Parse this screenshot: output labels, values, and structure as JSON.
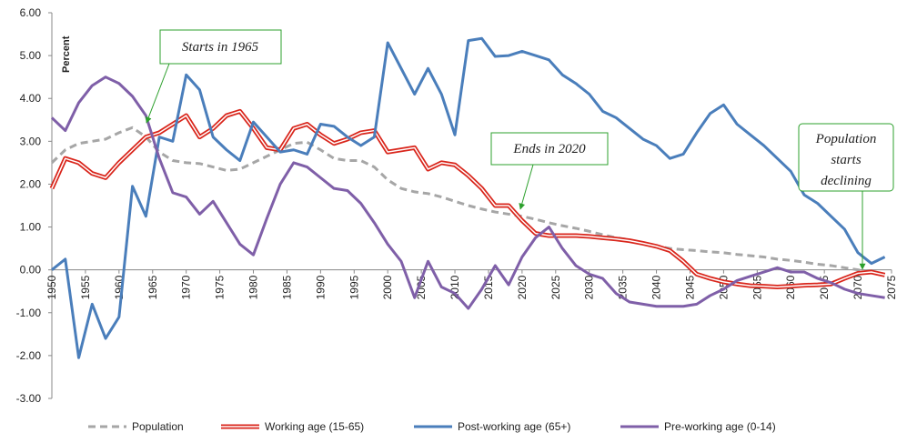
{
  "chart_data": {
    "type": "line",
    "ylabel": "Percent",
    "xlim": [
      1950,
      2075
    ],
    "xticks": [
      1950,
      1955,
      1960,
      1965,
      1970,
      1975,
      1980,
      1985,
      1990,
      1995,
      2000,
      2005,
      2010,
      2015,
      2020,
      2025,
      2030,
      2035,
      2040,
      2045,
      2050,
      2055,
      2060,
      2065,
      2070,
      2075
    ],
    "ylim": [
      -3,
      6
    ],
    "yticks": [
      {
        "value": -3,
        "label": "-3.00"
      },
      {
        "value": -2,
        "label": "-2.00"
      },
      {
        "value": -1,
        "label": "-1.00"
      },
      {
        "value": 0,
        "label": "0.00"
      },
      {
        "value": 1,
        "label": "1.00"
      },
      {
        "value": 2,
        "label": "2.00"
      },
      {
        "value": 3,
        "label": "3.00"
      },
      {
        "value": 4,
        "label": "4.00"
      },
      {
        "value": 5,
        "label": "5.00"
      },
      {
        "value": 6,
        "label": "6.00"
      }
    ],
    "grid": false,
    "legend": "bottom",
    "x": [
      1950,
      1952,
      1954,
      1956,
      1958,
      1960,
      1962,
      1964,
      1966,
      1968,
      1970,
      1972,
      1974,
      1976,
      1978,
      1980,
      1982,
      1984,
      1986,
      1988,
      1990,
      1992,
      1994,
      1996,
      1998,
      2000,
      2002,
      2004,
      2006,
      2008,
      2010,
      2012,
      2014,
      2016,
      2018,
      2020,
      2022,
      2024,
      2026,
      2028,
      2030,
      2032,
      2034,
      2036,
      2038,
      2040,
      2042,
      2044,
      2046,
      2048,
      2050,
      2052,
      2054,
      2056,
      2058,
      2060,
      2062,
      2064,
      2066,
      2068,
      2070,
      2072,
      2074
    ],
    "series": [
      {
        "name": "Population",
        "color": "#a6a6a6",
        "dashed": true,
        "values": [
          2.5,
          2.8,
          2.95,
          3.0,
          3.05,
          3.2,
          3.32,
          3.1,
          2.75,
          2.55,
          2.5,
          2.48,
          2.4,
          2.32,
          2.35,
          2.5,
          2.65,
          2.8,
          2.95,
          2.98,
          2.8,
          2.6,
          2.55,
          2.55,
          2.4,
          2.1,
          1.9,
          1.82,
          1.78,
          1.7,
          1.6,
          1.5,
          1.42,
          1.35,
          1.3,
          1.25,
          1.18,
          1.1,
          1.03,
          0.97,
          0.9,
          0.82,
          0.75,
          0.7,
          0.62,
          0.56,
          0.5,
          0.47,
          0.45,
          0.42,
          0.4,
          0.36,
          0.33,
          0.3,
          0.25,
          0.22,
          0.18,
          0.13,
          0.1,
          0.05,
          0.0,
          -0.05,
          -0.1
        ]
      },
      {
        "name": "Working age (15-65)",
        "color": "#d9261c",
        "double": true,
        "values": [
          1.9,
          2.6,
          2.5,
          2.25,
          2.15,
          2.5,
          2.8,
          3.1,
          3.2,
          3.4,
          3.6,
          3.1,
          3.3,
          3.6,
          3.7,
          3.3,
          2.85,
          2.8,
          3.3,
          3.4,
          3.15,
          2.95,
          3.05,
          3.2,
          3.25,
          2.75,
          2.8,
          2.85,
          2.35,
          2.5,
          2.45,
          2.2,
          1.9,
          1.5,
          1.5,
          1.15,
          0.85,
          0.8,
          0.8,
          0.8,
          0.78,
          0.75,
          0.72,
          0.68,
          0.62,
          0.55,
          0.45,
          0.2,
          -0.1,
          -0.2,
          -0.28,
          -0.33,
          -0.37,
          -0.38,
          -0.4,
          -0.38,
          -0.36,
          -0.35,
          -0.33,
          -0.2,
          -0.08,
          -0.05,
          -0.12
        ]
      },
      {
        "name": "Post-working age (65+)",
        "color": "#4a7ebb",
        "values": [
          0.0,
          0.25,
          -2.05,
          -0.8,
          -1.6,
          -1.1,
          1.95,
          1.25,
          3.1,
          3.0,
          4.55,
          4.2,
          3.1,
          2.8,
          2.55,
          3.45,
          3.1,
          2.75,
          2.8,
          2.7,
          3.4,
          3.35,
          3.1,
          2.9,
          3.1,
          5.3,
          4.7,
          4.1,
          4.7,
          4.1,
          3.15,
          5.35,
          5.4,
          4.98,
          5.0,
          5.1,
          5.0,
          4.9,
          4.55,
          4.35,
          4.1,
          3.7,
          3.55,
          3.3,
          3.05,
          2.9,
          2.6,
          2.7,
          3.2,
          3.65,
          3.85,
          3.4,
          3.15,
          2.9,
          2.6,
          2.3,
          1.75,
          1.55,
          1.25,
          0.95,
          0.4,
          0.15,
          0.3
        ]
      },
      {
        "name": "Pre-working age (0-14)",
        "color": "#7f5fa8",
        "values": [
          3.55,
          3.25,
          3.9,
          4.3,
          4.5,
          4.35,
          4.05,
          3.6,
          2.6,
          1.8,
          1.7,
          1.3,
          1.6,
          1.1,
          0.6,
          0.35,
          1.2,
          2.0,
          2.5,
          2.4,
          2.15,
          1.9,
          1.85,
          1.55,
          1.1,
          0.6,
          0.2,
          -0.65,
          0.2,
          -0.4,
          -0.55,
          -0.9,
          -0.45,
          0.1,
          -0.35,
          0.3,
          0.75,
          1.0,
          0.5,
          0.1,
          -0.1,
          -0.2,
          -0.55,
          -0.75,
          -0.8,
          -0.85,
          -0.85,
          -0.85,
          -0.8,
          -0.6,
          -0.45,
          -0.25,
          -0.15,
          -0.05,
          0.05,
          -0.05,
          -0.05,
          -0.2,
          -0.3,
          -0.45,
          -0.55,
          -0.6,
          -0.65
        ]
      }
    ],
    "annotations": [
      {
        "lines": [
          "Starts in 1965"
        ]
      },
      {
        "lines": [
          "Ends in 2020"
        ]
      },
      {
        "lines": [
          "Population",
          "starts",
          "declining"
        ]
      }
    ]
  }
}
